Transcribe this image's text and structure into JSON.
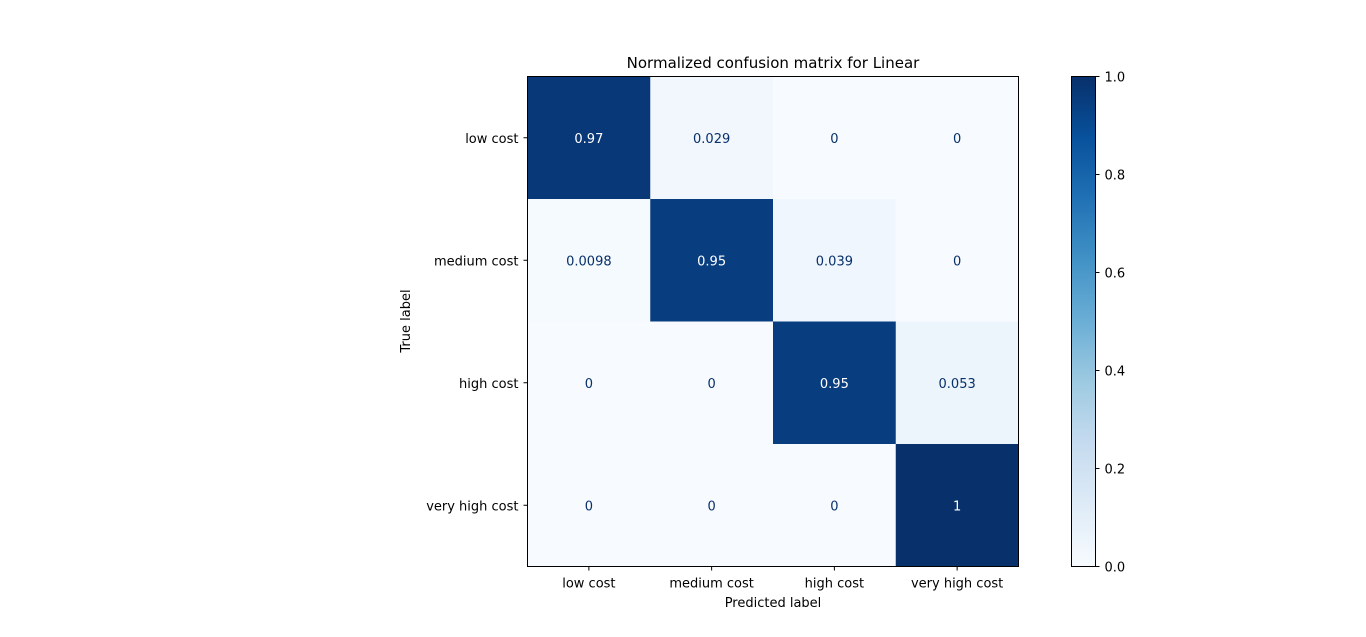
{
  "chart_data": {
    "type": "heatmap",
    "title": "Normalized confusion matrix for Linear",
    "xlabel": "Predicted label",
    "ylabel": "True label",
    "x_categories": [
      "low cost",
      "medium cost",
      "high cost",
      "very high cost"
    ],
    "y_categories": [
      "low cost",
      "medium cost",
      "high cost",
      "very high cost"
    ],
    "values": [
      [
        0.97,
        0.029,
        0,
        0
      ],
      [
        0.0098,
        0.95,
        0.039,
        0
      ],
      [
        0,
        0,
        0.95,
        0.053
      ],
      [
        0,
        0,
        0,
        1
      ]
    ],
    "cell_labels": [
      [
        "0.97",
        "0.029",
        "0",
        "0"
      ],
      [
        "0.0098",
        "0.95",
        "0.039",
        "0"
      ],
      [
        "0",
        "0",
        "0.95",
        "0.053"
      ],
      [
        "0",
        "0",
        "0",
        "1"
      ]
    ],
    "colormap": "Blues",
    "colorbar": {
      "range": [
        0.0,
        1.0
      ],
      "ticks": [
        0.0,
        0.2,
        0.4,
        0.6,
        0.8,
        1.0
      ],
      "tick_labels": [
        "0.0",
        "0.2",
        "0.4",
        "0.6",
        "0.8",
        "1.0"
      ]
    },
    "grid": false
  }
}
